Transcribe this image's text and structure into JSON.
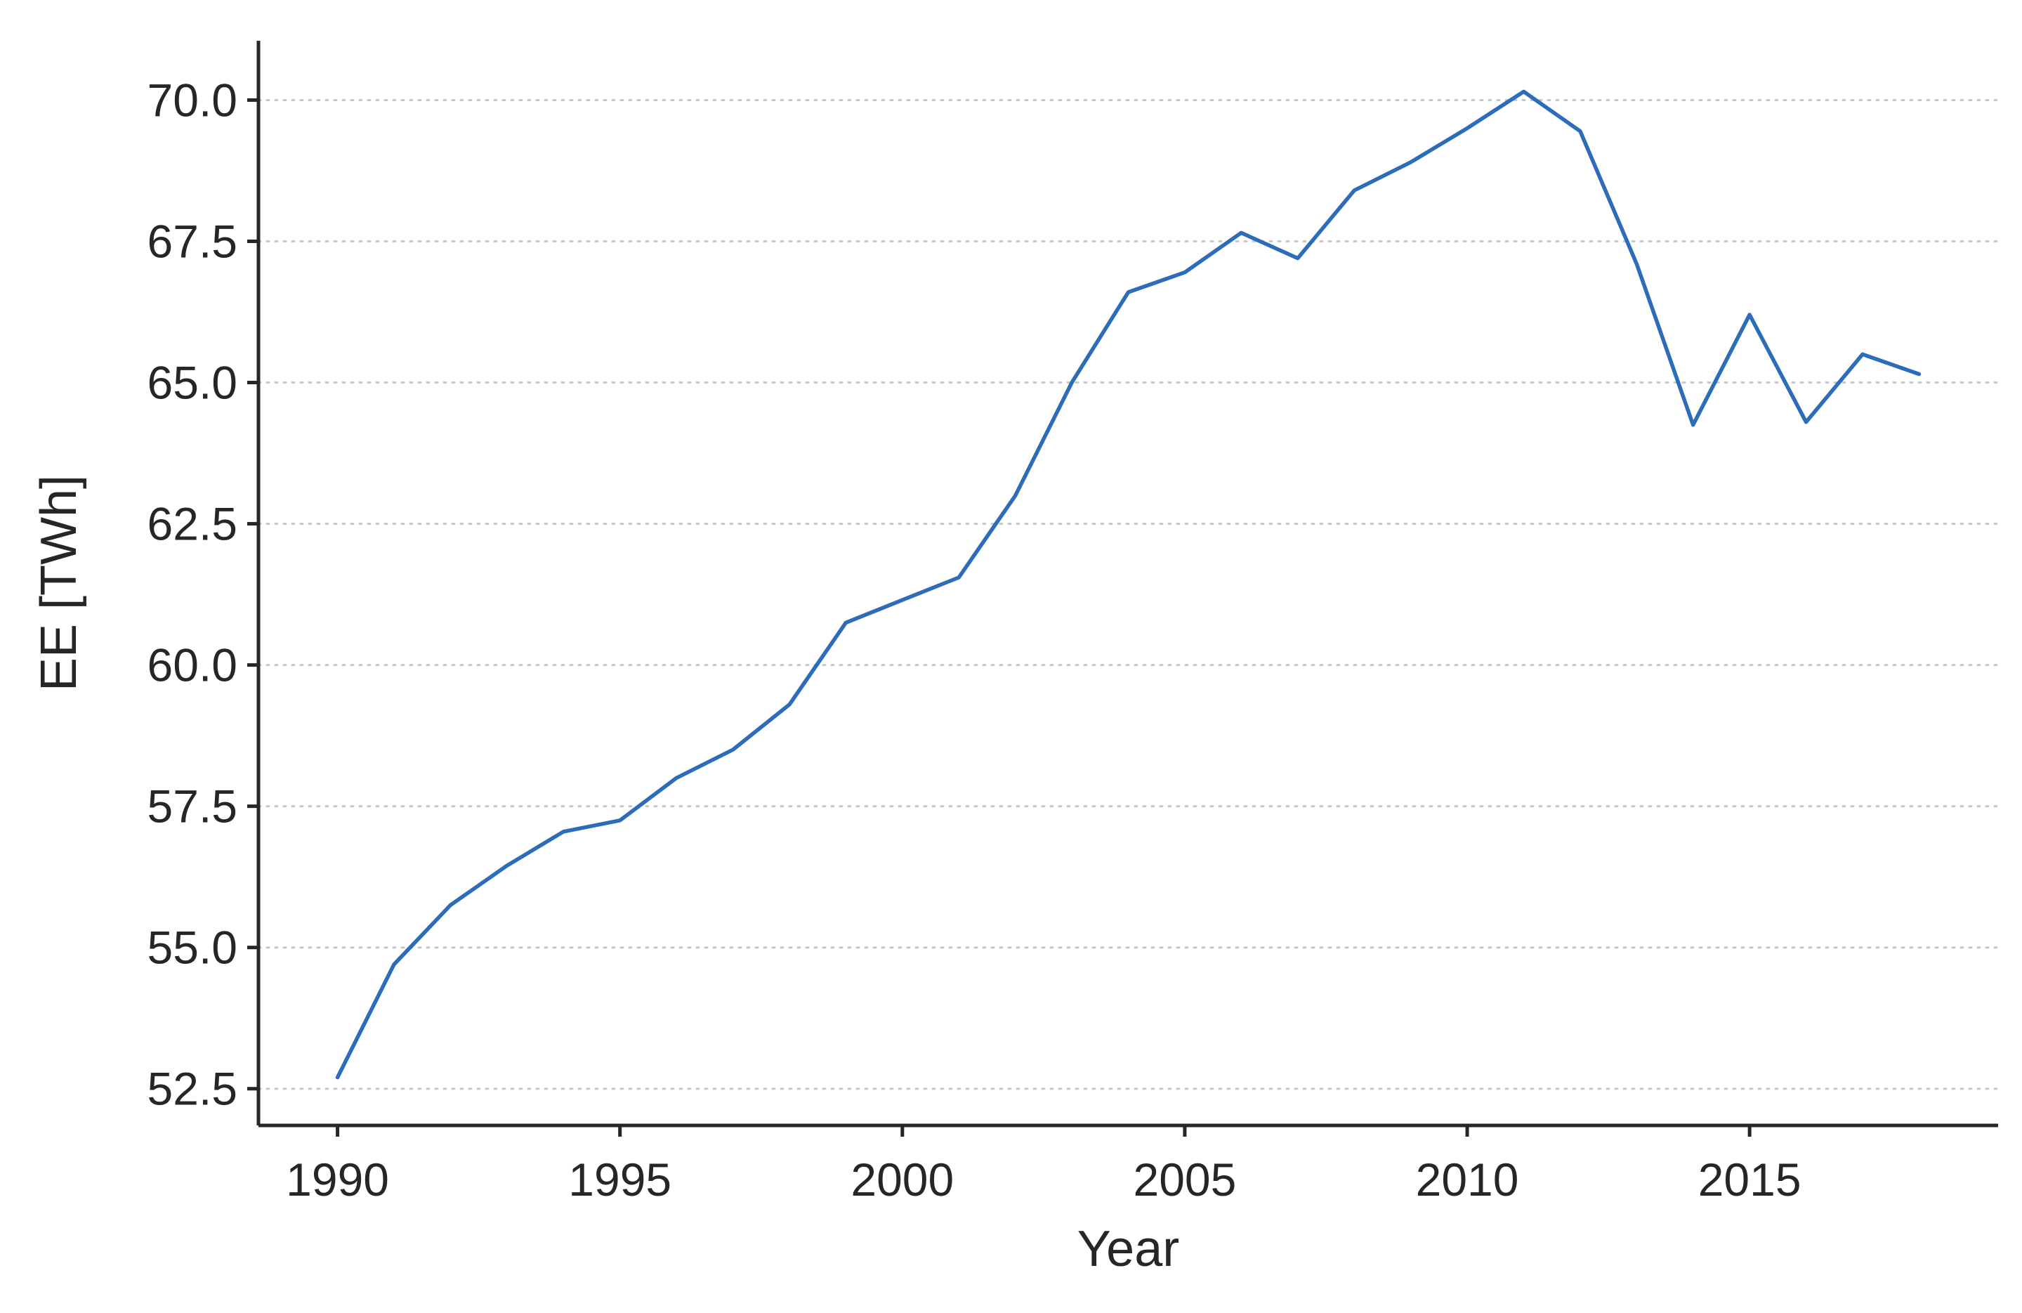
{
  "chart_data": {
    "type": "line",
    "title": "",
    "xlabel": "Year",
    "ylabel": "EE [TWh]",
    "xlim": [
      1988.6,
      2019.4
    ],
    "ylim": [
      51.85,
      71.05
    ],
    "x_ticks": [
      1990,
      1995,
      2000,
      2005,
      2010,
      2015
    ],
    "y_ticks": [
      52.5,
      55.0,
      57.5,
      60.0,
      62.5,
      65.0,
      67.5,
      70.0
    ],
    "x_tick_labels": [
      "1990",
      "1995",
      "2000",
      "2005",
      "2010",
      "2015"
    ],
    "y_tick_labels": [
      "52.5",
      "55.0",
      "57.5",
      "60.0",
      "62.5",
      "65.0",
      "67.5",
      "70.0"
    ],
    "grid": {
      "y": true,
      "x": false,
      "style": "dotted"
    },
    "series": [
      {
        "color": "#2c6cb8",
        "x": [
          1990,
          1991,
          1992,
          1993,
          1994,
          1995,
          1996,
          1997,
          1998,
          1999,
          2000,
          2001,
          2002,
          2003,
          2004,
          2005,
          2006,
          2007,
          2008,
          2009,
          2010,
          2011,
          2012,
          2013,
          2014,
          2015,
          2016,
          2017,
          2018
        ],
        "values": [
          52.7,
          54.7,
          55.75,
          56.45,
          57.05,
          57.25,
          58.0,
          58.5,
          59.3,
          60.75,
          61.15,
          61.55,
          63.0,
          65.0,
          66.6,
          66.95,
          67.65,
          67.2,
          68.4,
          68.9,
          69.5,
          70.15,
          69.45,
          67.1,
          64.25,
          66.2,
          64.3,
          65.5,
          65.15
        ]
      }
    ]
  }
}
